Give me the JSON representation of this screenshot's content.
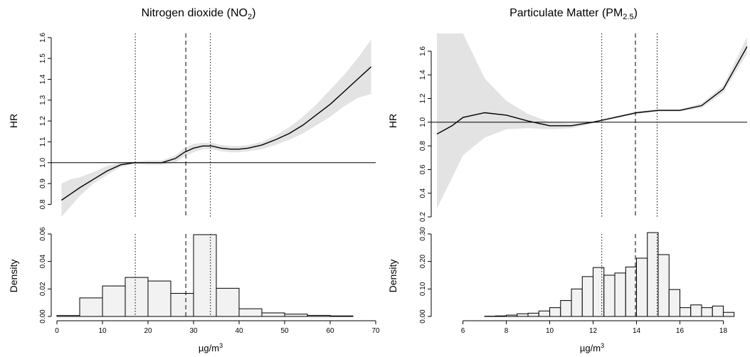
{
  "chart_data": [
    {
      "type": "line",
      "panel": "left-top",
      "title": "Nitrogen dioxide (NO",
      "title_sub": "2",
      "title_close": ")",
      "ylabel": "HR",
      "xlim": [
        0,
        70
      ],
      "ylim": [
        0.74,
        1.62
      ],
      "yticks": [
        "0.8",
        "0.9",
        "1.0",
        "1.1",
        "1.2",
        "1.3",
        "1.4",
        "1.5",
        "1.6"
      ],
      "reference_line": 1.0,
      "vlines": [
        {
          "x": 17.2,
          "style": "dotted"
        },
        {
          "x": 28.3,
          "style": "dashed"
        },
        {
          "x": 33.7,
          "style": "dotted"
        }
      ],
      "x": [
        1,
        3,
        5,
        8,
        11,
        14,
        17,
        20,
        23,
        26,
        28,
        30,
        32,
        34,
        36,
        38,
        40,
        42,
        45,
        48,
        51,
        54,
        57,
        60,
        63,
        66,
        69
      ],
      "y": [
        0.82,
        0.85,
        0.88,
        0.92,
        0.96,
        0.99,
        1.0,
        1.0,
        1.0,
        1.02,
        1.05,
        1.07,
        1.08,
        1.08,
        1.07,
        1.065,
        1.065,
        1.07,
        1.085,
        1.11,
        1.14,
        1.18,
        1.23,
        1.28,
        1.34,
        1.4,
        1.46
      ],
      "lower": [
        0.74,
        0.79,
        0.84,
        0.9,
        0.94,
        0.98,
        0.995,
        0.99,
        0.99,
        1.0,
        1.03,
        1.05,
        1.065,
        1.065,
        1.055,
        1.05,
        1.05,
        1.055,
        1.065,
        1.085,
        1.11,
        1.14,
        1.18,
        1.22,
        1.27,
        1.31,
        1.33
      ],
      "upper": [
        0.9,
        0.92,
        0.93,
        0.955,
        0.985,
        1.0,
        1.005,
        1.01,
        1.01,
        1.035,
        1.07,
        1.09,
        1.095,
        1.095,
        1.085,
        1.08,
        1.08,
        1.085,
        1.1,
        1.13,
        1.17,
        1.22,
        1.28,
        1.35,
        1.42,
        1.5,
        1.59
      ]
    },
    {
      "type": "bar",
      "panel": "left-bottom",
      "ylabel": "Density",
      "xlabel": "µg/m",
      "xlabel_sup": "3",
      "xlim": [
        0,
        70
      ],
      "ylim": [
        0,
        0.06
      ],
      "xticks": [
        "0",
        "10",
        "20",
        "30",
        "40",
        "50",
        "60",
        "70"
      ],
      "yticks": [
        "0.00",
        "0.02",
        "0.04",
        "0.06"
      ],
      "bin_edges": [
        0,
        5,
        10,
        15,
        20,
        25,
        30,
        35,
        40,
        45,
        50,
        55,
        60,
        65
      ],
      "values": [
        0.0007,
        0.0135,
        0.0222,
        0.0284,
        0.0258,
        0.0168,
        0.0595,
        0.0205,
        0.0056,
        0.0026,
        0.0017,
        0.0008,
        0.0004
      ],
      "vlines": [
        {
          "x": 17.2,
          "style": "dotted"
        },
        {
          "x": 28.3,
          "style": "dashed"
        },
        {
          "x": 33.7,
          "style": "dotted"
        }
      ]
    },
    {
      "type": "line",
      "panel": "right-top",
      "title": "Particulate Matter (PM",
      "title_sub": "2.5",
      "title_close": ")",
      "ylabel": "HR",
      "xlim": [
        4.8,
        19.1
      ],
      "ylim": [
        0.2,
        1.75
      ],
      "yticks": [
        "0.2",
        "0.4",
        "0.6",
        "0.8",
        "1.0",
        "1.2",
        "1.4",
        "1.6"
      ],
      "reference_line": 1.0,
      "vlines": [
        {
          "x": 12.4,
          "style": "dotted"
        },
        {
          "x": 13.95,
          "style": "dashed"
        },
        {
          "x": 14.95,
          "style": "dotted"
        }
      ],
      "x": [
        4.8,
        5.5,
        6,
        7,
        8,
        9,
        10,
        11,
        12,
        12.5,
        13,
        14,
        15,
        16,
        17,
        18,
        19.1
      ],
      "y": [
        0.9,
        0.97,
        1.04,
        1.08,
        1.06,
        1.01,
        0.97,
        0.97,
        1.0,
        1.02,
        1.04,
        1.08,
        1.1,
        1.1,
        1.14,
        1.28,
        1.64
      ],
      "lower": [
        0.27,
        0.53,
        0.72,
        0.87,
        0.94,
        0.95,
        0.94,
        0.95,
        0.99,
        1.01,
        1.03,
        1.07,
        1.09,
        1.09,
        1.12,
        1.25,
        1.58
      ],
      "upper": [
        1.75,
        1.75,
        1.75,
        1.37,
        1.18,
        1.07,
        1.0,
        0.99,
        1.01,
        1.03,
        1.05,
        1.09,
        1.11,
        1.11,
        1.16,
        1.31,
        1.72
      ]
    },
    {
      "type": "bar",
      "panel": "right-bottom",
      "ylabel": "Density",
      "xlabel": "µg/m",
      "xlabel_sup": "3",
      "xlim": [
        4.8,
        19.1
      ],
      "ylim": [
        0,
        0.3
      ],
      "xticks": [
        "6",
        "8",
        "10",
        "12",
        "14",
        "16",
        "18"
      ],
      "yticks": [
        "0.00",
        "0.10",
        "0.20",
        "0.30"
      ],
      "bin_edges": [
        6.5,
        7,
        7.5,
        8,
        8.5,
        9,
        9.5,
        10,
        10.5,
        11,
        11.5,
        12,
        12.5,
        13,
        13.5,
        14,
        14.5,
        15,
        15.5,
        16,
        16.5,
        17,
        17.5,
        18,
        18.5
      ],
      "values": [
        0.0,
        0.001,
        0.002,
        0.005,
        0.01,
        0.012,
        0.02,
        0.032,
        0.058,
        0.1,
        0.145,
        0.178,
        0.15,
        0.158,
        0.18,
        0.212,
        0.305,
        0.225,
        0.098,
        0.032,
        0.042,
        0.032,
        0.038,
        0.015
      ],
      "vlines": [
        {
          "x": 12.4,
          "style": "dotted"
        },
        {
          "x": 13.95,
          "style": "dashed"
        },
        {
          "x": 14.95,
          "style": "dotted"
        }
      ]
    }
  ]
}
